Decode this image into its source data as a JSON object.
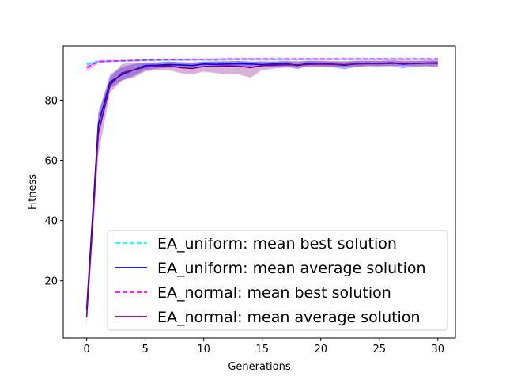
{
  "chart_data": {
    "type": "line",
    "title": "",
    "xlabel": "Generations",
    "ylabel": "Fitness",
    "xlim": [
      -2,
      31.5
    ],
    "ylim": [
      1,
      98
    ],
    "x_ticks": [
      0,
      5,
      10,
      15,
      20,
      25,
      30
    ],
    "y_ticks": [
      20,
      40,
      60,
      80
    ],
    "grid": false,
    "legend_position": "lower-right",
    "x": [
      0,
      1,
      2,
      3,
      4,
      5,
      6,
      7,
      8,
      9,
      10,
      11,
      12,
      13,
      14,
      15,
      16,
      17,
      18,
      19,
      20,
      21,
      22,
      23,
      24,
      25,
      26,
      27,
      28,
      29,
      30
    ],
    "series": [
      {
        "name": "EA_uniform: mean best solution",
        "color": "#00ffff",
        "style": "dashed",
        "values": [
          92.0,
          92.8,
          93.0,
          93.0,
          93.1,
          93.2,
          93.2,
          93.3,
          93.3,
          93.3,
          93.3,
          93.3,
          93.4,
          93.4,
          93.4,
          93.4,
          93.4,
          93.4,
          93.4,
          93.5,
          93.5,
          93.5,
          93.5,
          93.5,
          93.5,
          93.5,
          93.5,
          93.5,
          93.5,
          93.5,
          93.5
        ],
        "band_low": [
          91.2,
          92.3,
          92.6,
          92.7,
          92.8,
          92.9,
          93.0,
          93.0,
          93.0,
          93.1,
          93.1,
          93.1,
          93.1,
          93.2,
          93.2,
          93.2,
          93.2,
          93.2,
          93.2,
          93.3,
          93.3,
          93.3,
          93.3,
          93.3,
          93.3,
          93.3,
          93.3,
          93.3,
          93.3,
          93.3,
          93.3
        ],
        "band_high": [
          92.6,
          93.2,
          93.3,
          93.3,
          93.4,
          93.4,
          93.4,
          93.5,
          93.5,
          93.5,
          93.5,
          93.5,
          93.6,
          93.6,
          93.6,
          93.6,
          93.6,
          93.6,
          93.6,
          93.7,
          93.7,
          93.7,
          93.7,
          93.7,
          93.7,
          93.7,
          93.7,
          93.7,
          93.7,
          93.7,
          93.7
        ]
      },
      {
        "name": "EA_uniform: mean average solution",
        "color": "#0000ff",
        "style": "solid",
        "values": [
          10.5,
          72.0,
          86.0,
          88.5,
          90.0,
          91.5,
          91.6,
          91.8,
          91.7,
          91.5,
          92.0,
          91.9,
          92.0,
          92.1,
          92.0,
          91.8,
          92.0,
          92.2,
          91.5,
          92.3,
          92.2,
          92.0,
          91.6,
          92.1,
          92.3,
          92.2,
          92.4,
          92.0,
          92.2,
          92.3,
          92.4
        ],
        "band_low": [
          8.5,
          68.0,
          84.0,
          86.5,
          88.0,
          90.0,
          90.5,
          90.8,
          90.8,
          90.6,
          91.0,
          91.0,
          91.2,
          91.2,
          91.0,
          91.0,
          91.0,
          91.2,
          90.3,
          91.3,
          91.2,
          91.0,
          90.2,
          91.0,
          91.3,
          91.2,
          91.3,
          90.6,
          91.0,
          91.2,
          91.3
        ],
        "band_high": [
          12.5,
          75.5,
          88.5,
          91.0,
          92.0,
          92.5,
          92.6,
          92.8,
          92.6,
          92.4,
          92.8,
          92.7,
          92.8,
          93.0,
          92.8,
          92.6,
          92.8,
          93.0,
          92.6,
          93.1,
          93.0,
          92.8,
          92.6,
          93.0,
          93.1,
          93.0,
          93.2,
          92.9,
          93.0,
          93.1,
          93.2
        ]
      },
      {
        "name": "EA_normal: mean best solution",
        "color": "#ff00ff",
        "style": "dashed",
        "values": [
          90.8,
          92.8,
          93.0,
          93.1,
          93.2,
          93.3,
          93.4,
          93.5,
          93.5,
          93.6,
          93.6,
          93.6,
          93.7,
          93.7,
          93.7,
          93.7,
          93.7,
          93.7,
          93.7,
          93.7,
          93.7,
          93.7,
          93.7,
          93.7,
          93.7,
          93.7,
          93.7,
          93.7,
          93.7,
          93.7,
          93.7
        ],
        "band_low": [
          89.6,
          92.2,
          92.6,
          92.8,
          92.9,
          93.0,
          93.1,
          93.2,
          93.2,
          93.3,
          93.3,
          93.3,
          93.4,
          93.4,
          93.4,
          93.4,
          93.4,
          93.4,
          93.4,
          93.4,
          93.4,
          93.4,
          93.4,
          93.4,
          93.4,
          93.4,
          93.4,
          93.4,
          93.4,
          93.4,
          93.4
        ],
        "band_high": [
          91.8,
          93.3,
          93.4,
          93.4,
          93.5,
          93.6,
          93.7,
          93.8,
          93.8,
          93.9,
          93.9,
          93.9,
          94.0,
          94.0,
          94.0,
          94.0,
          94.0,
          94.0,
          94.0,
          94.0,
          94.0,
          94.0,
          94.0,
          94.0,
          94.0,
          94.0,
          94.0,
          94.0,
          94.0,
          94.0,
          94.0
        ]
      },
      {
        "name": "EA_normal: mean average solution",
        "color": "#800080",
        "style": "solid",
        "values": [
          8.0,
          69.0,
          85.0,
          89.0,
          90.0,
          91.0,
          91.2,
          91.4,
          90.8,
          90.5,
          91.2,
          91.3,
          91.4,
          91.3,
          90.8,
          91.5,
          91.6,
          91.8,
          91.7,
          91.9,
          92.0,
          91.9,
          91.8,
          92.0,
          92.1,
          92.1,
          92.2,
          92.3,
          92.1,
          92.3,
          92.2
        ],
        "band_low": [
          5.0,
          62.0,
          82.5,
          86.5,
          87.5,
          89.5,
          90.0,
          90.0,
          89.0,
          88.5,
          89.5,
          89.0,
          88.5,
          88.5,
          87.5,
          90.0,
          90.5,
          90.8,
          90.8,
          91.0,
          91.2,
          91.0,
          91.0,
          91.0,
          91.3,
          91.3,
          91.4,
          91.5,
          91.3,
          91.5,
          90.8
        ],
        "band_high": [
          11.0,
          76.0,
          87.5,
          92.0,
          92.5,
          92.5,
          92.4,
          92.8,
          92.6,
          92.5,
          92.8,
          93.0,
          93.0,
          93.0,
          92.8,
          93.0,
          92.8,
          93.0,
          93.0,
          93.0,
          93.1,
          93.0,
          93.0,
          93.1,
          93.1,
          93.1,
          93.2,
          93.2,
          93.1,
          93.2,
          93.2
        ]
      }
    ]
  }
}
